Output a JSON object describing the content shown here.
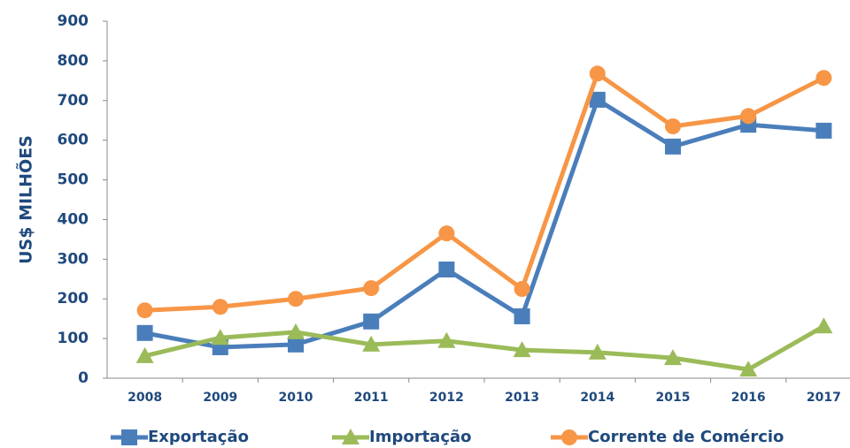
{
  "chart_data": {
    "type": "line",
    "ylabel": "US$ MILHÕES",
    "categories": [
      "2008",
      "2009",
      "2010",
      "2011",
      "2012",
      "2013",
      "2014",
      "2015",
      "2016",
      "2017"
    ],
    "series": [
      {
        "name": "Exportação",
        "color": "#4a7ebb",
        "marker": "square",
        "values": [
          114,
          78,
          85,
          143,
          274,
          156,
          702,
          584,
          639,
          624
        ]
      },
      {
        "name": "Importação",
        "color": "#9bbb59",
        "marker": "triangle",
        "values": [
          56,
          102,
          116,
          85,
          94,
          71,
          65,
          51,
          22,
          131
        ]
      },
      {
        "name": "Corrente de Comércio",
        "color": "#f79646",
        "marker": "circle",
        "values": [
          171,
          180,
          200,
          227,
          365,
          225,
          768,
          635,
          661,
          757
        ]
      }
    ],
    "ylim": [
      0,
      900
    ],
    "yticks": [
      0,
      100,
      200,
      300,
      400,
      500,
      600,
      700,
      800,
      900
    ],
    "legend": "bottom"
  }
}
